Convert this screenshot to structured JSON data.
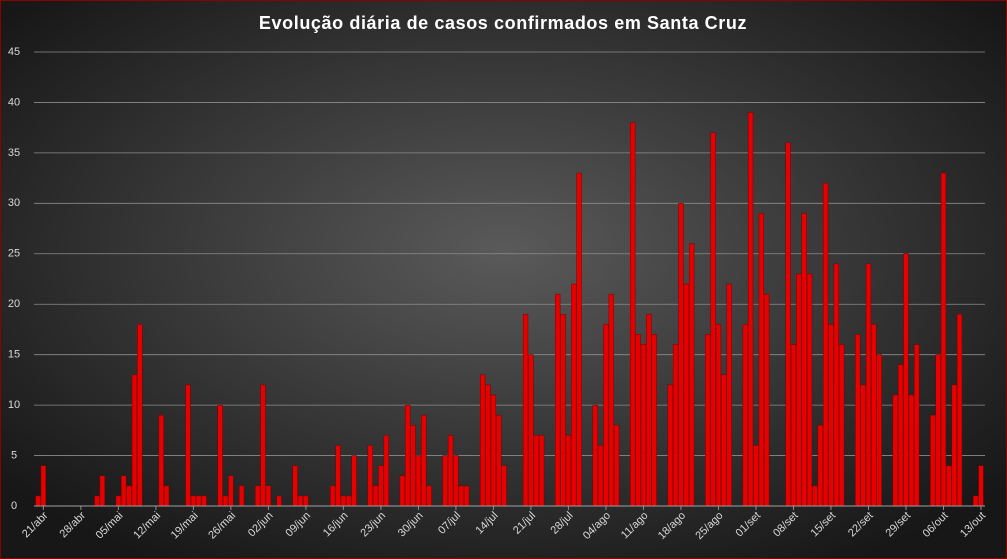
{
  "chart_data": {
    "type": "bar",
    "title": "Evolução  diária  de  casos  confirmados  em  Santa  Cruz",
    "color": "#e60000",
    "grid": true,
    "ylim": [
      0,
      45
    ],
    "yticks": [
      0,
      5,
      10,
      15,
      20,
      25,
      30,
      35,
      40,
      45
    ],
    "categories": [
      null,
      "21/abr",
      null,
      null,
      null,
      null,
      null,
      null,
      "28/abr",
      null,
      null,
      null,
      null,
      null,
      null,
      "05/mai",
      null,
      null,
      null,
      null,
      null,
      null,
      "12/mai",
      null,
      null,
      null,
      null,
      null,
      null,
      "19/mai",
      null,
      null,
      null,
      null,
      null,
      null,
      "26/mai",
      null,
      null,
      null,
      null,
      null,
      null,
      "02/jun",
      null,
      null,
      null,
      null,
      null,
      null,
      "09/jun",
      null,
      null,
      null,
      null,
      null,
      null,
      "16/jun",
      null,
      null,
      null,
      null,
      null,
      null,
      "23/jun",
      null,
      null,
      null,
      null,
      null,
      null,
      "30/jun",
      null,
      null,
      null,
      null,
      null,
      null,
      "07/jul",
      null,
      null,
      null,
      null,
      null,
      null,
      "14/jul",
      null,
      null,
      null,
      null,
      null,
      null,
      "21/jul",
      null,
      null,
      null,
      null,
      null,
      null,
      "28/jul",
      null,
      null,
      null,
      null,
      null,
      null,
      "04/ago",
      null,
      null,
      null,
      null,
      null,
      null,
      "11/ago",
      null,
      null,
      null,
      null,
      null,
      null,
      "18/ago",
      null,
      null,
      null,
      null,
      null,
      null,
      "25/ago",
      null,
      null,
      null,
      null,
      null,
      null,
      "01/set",
      null,
      null,
      null,
      null,
      null,
      null,
      "08/set",
      null,
      null,
      null,
      null,
      null,
      null,
      "15/set",
      null,
      null,
      null,
      null,
      null,
      null,
      "22/set",
      null,
      null,
      null,
      null,
      null,
      null,
      "29/set",
      null,
      null,
      null,
      null,
      null,
      null,
      "06/out",
      null,
      null,
      null,
      null,
      null,
      null,
      "13/out"
    ],
    "values": [
      1,
      4,
      0,
      0,
      0,
      0,
      0,
      0,
      0,
      0,
      0,
      1,
      3,
      0,
      0,
      1,
      3,
      2,
      13,
      18,
      0,
      0,
      0,
      9,
      2,
      0,
      0,
      0,
      12,
      1,
      1,
      1,
      0,
      0,
      10,
      1,
      3,
      0,
      2,
      0,
      0,
      2,
      12,
      2,
      0,
      1,
      0,
      0,
      4,
      1,
      1,
      0,
      0,
      0,
      0,
      2,
      6,
      1,
      1,
      5,
      0,
      0,
      6,
      2,
      4,
      7,
      0,
      0,
      3,
      10,
      8,
      5,
      9,
      2,
      0,
      0,
      5,
      7,
      5,
      2,
      2,
      0,
      0,
      13,
      12,
      11,
      9,
      4,
      0,
      0,
      0,
      19,
      15,
      7,
      7,
      0,
      0,
      21,
      19,
      7,
      22,
      33,
      0,
      0,
      10,
      6,
      18,
      21,
      8,
      0,
      0,
      38,
      17,
      16,
      19,
      17,
      0,
      0,
      12,
      16,
      30,
      22,
      26,
      0,
      0,
      17,
      37,
      18,
      13,
      22,
      0,
      0,
      18,
      39,
      6,
      29,
      21,
      0,
      0,
      0,
      36,
      16,
      23,
      29,
      23,
      2,
      8,
      32,
      18,
      24,
      16,
      0,
      0,
      17,
      12,
      24,
      18,
      15,
      0,
      0,
      11,
      14,
      25,
      11,
      16,
      0,
      0,
      9,
      15,
      33,
      4,
      12,
      19,
      0,
      0,
      1,
      4
    ]
  }
}
